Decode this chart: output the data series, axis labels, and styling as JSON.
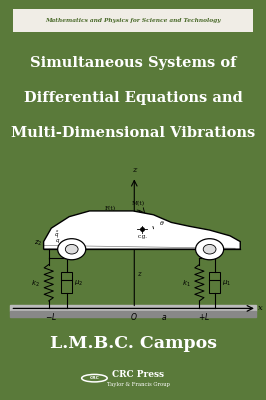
{
  "bg_color": "#5a7a3a",
  "white": "#ffffff",
  "off_white": "#f0ede6",
  "series_text": "Mathematics and Physics for Science and Technology",
  "title_line1": "Simultaneous Systems of",
  "title_line2": "Differential Equations and",
  "title_line3": "Multi-Dimensional Vibrations",
  "author": "L.M.B.C. Campos",
  "publisher": "CRC Press",
  "publisher_sub": "Taylor & Francis Group",
  "diagram_bg": "#ffffff",
  "fig_width": 2.66,
  "fig_height": 4.0,
  "dpi": 100
}
